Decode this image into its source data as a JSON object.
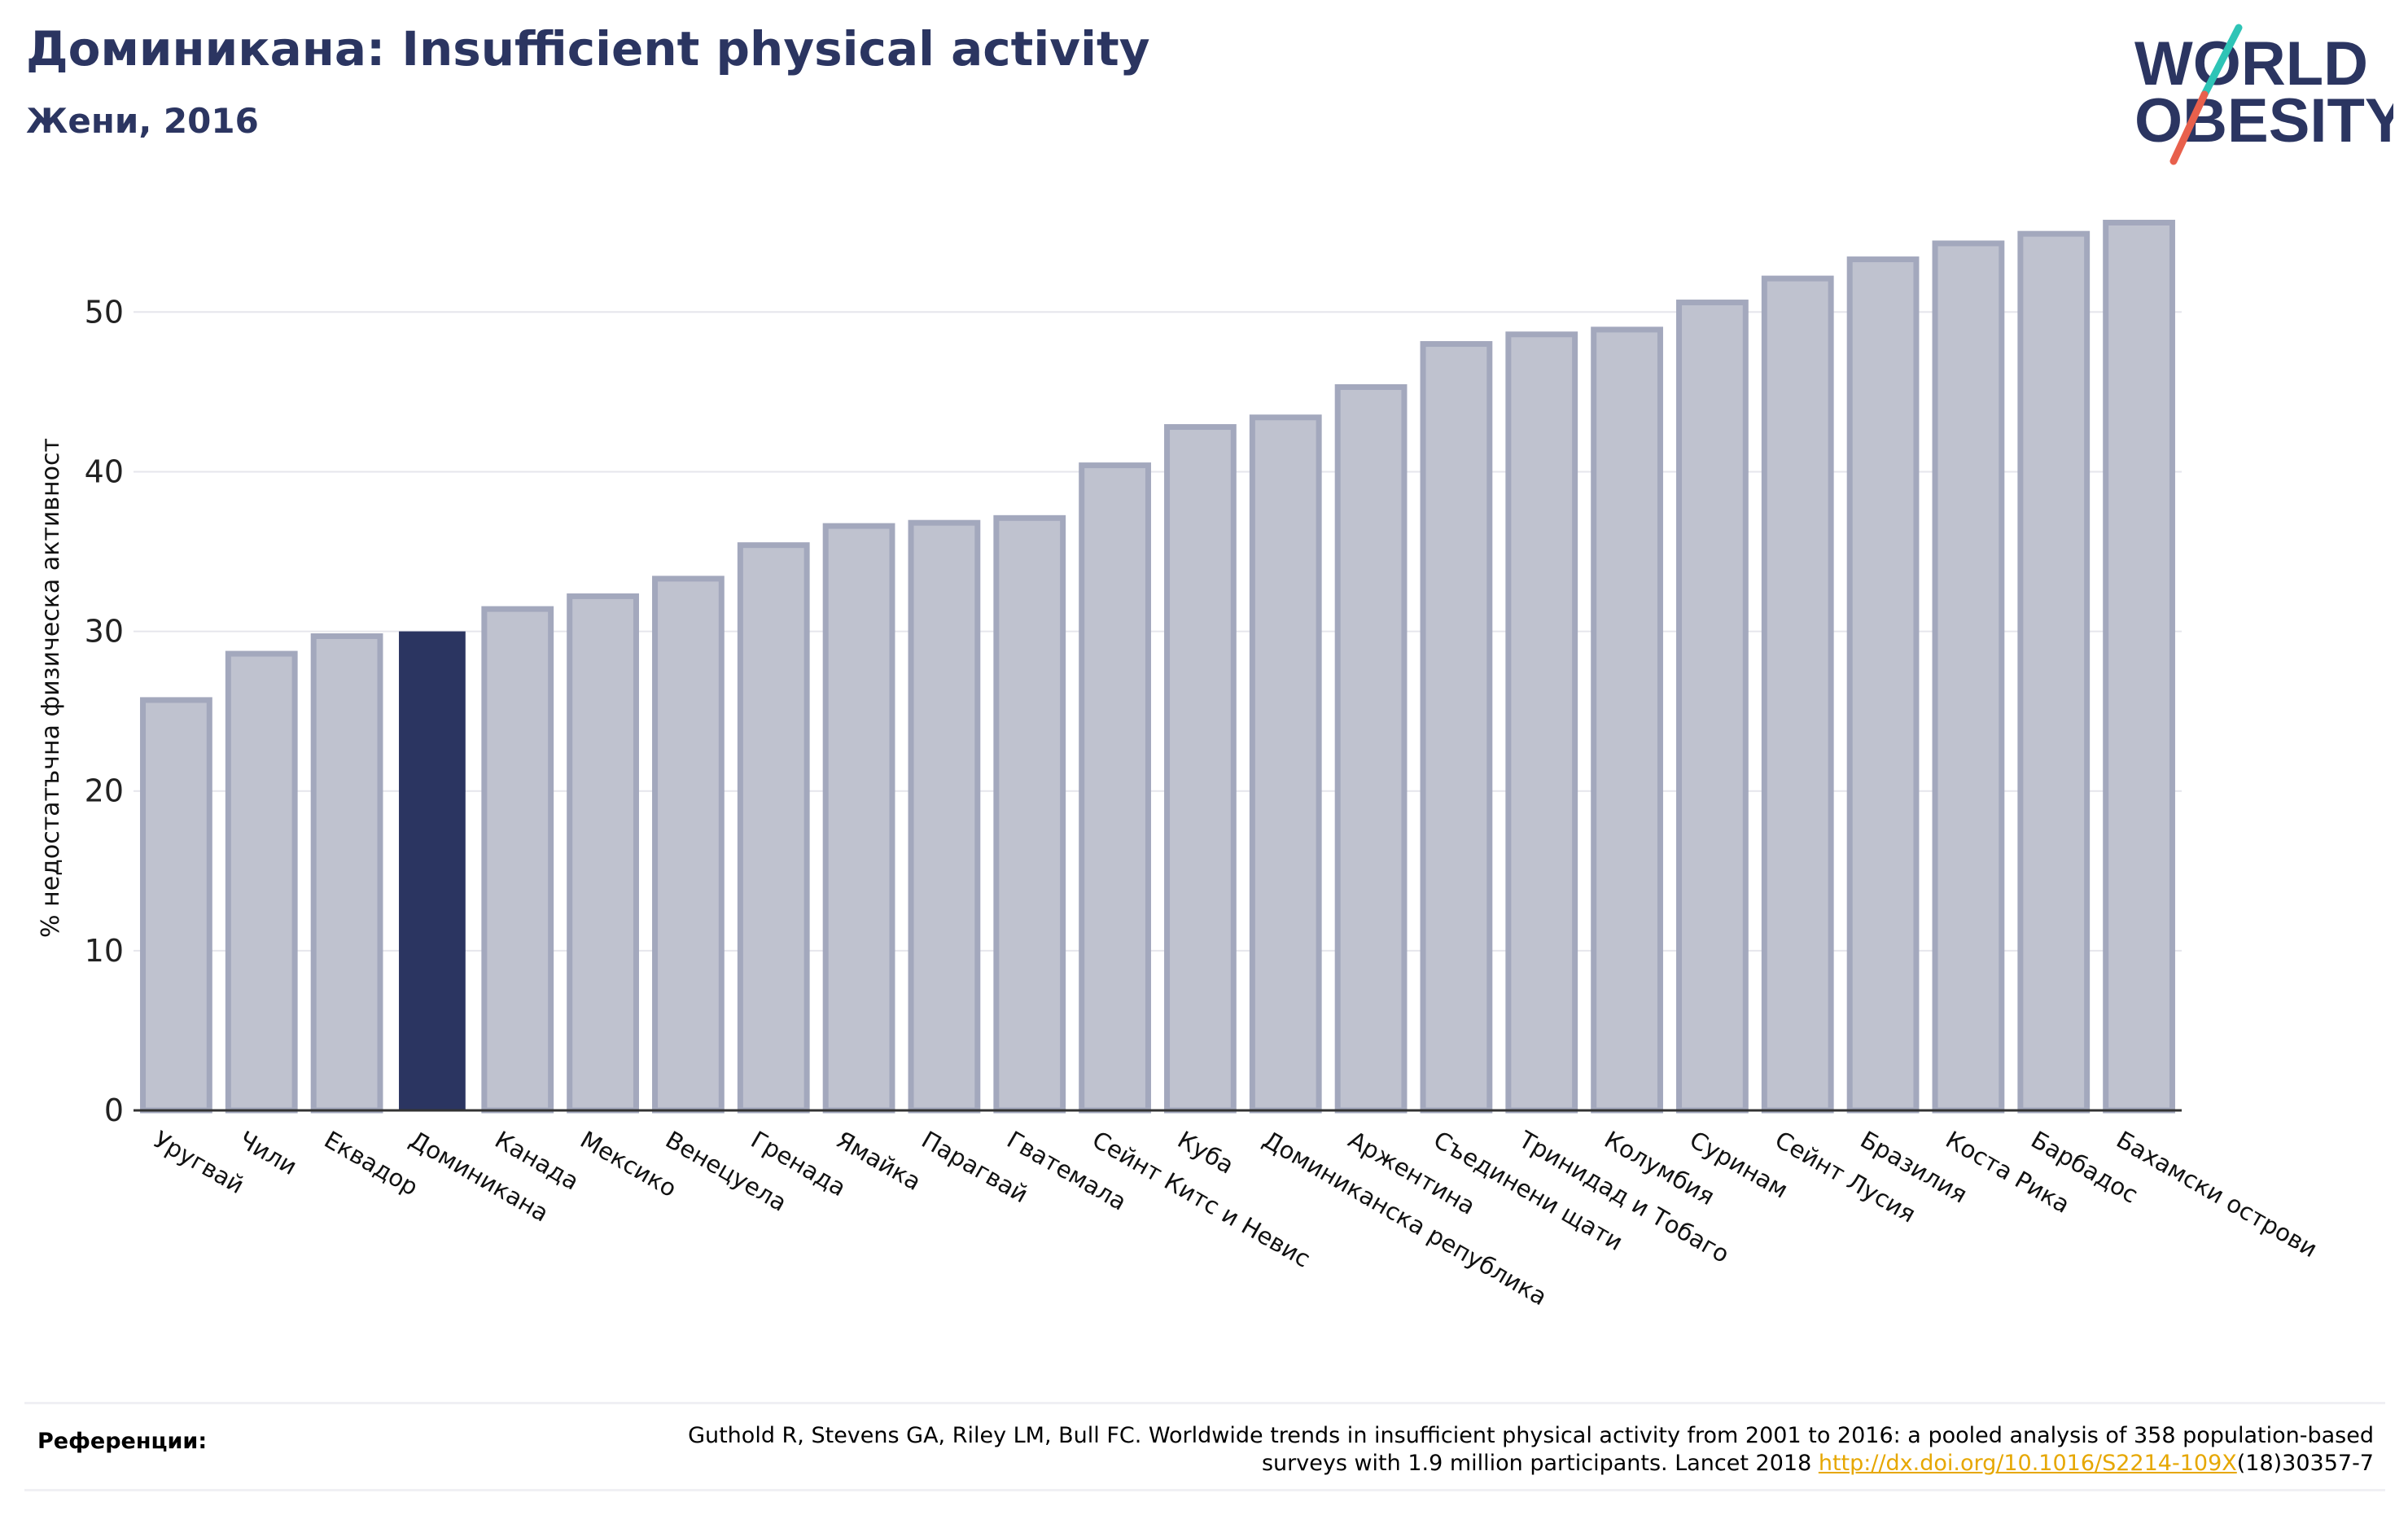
{
  "header": {
    "title": "Доминикана: Insufficient physical activity",
    "subtitle": "Жени, 2016"
  },
  "logo": {
    "line1": "WORLD",
    "line2": "OBESITY",
    "brand_color": "#2b3561",
    "slash_colors": [
      "#2ec4b6",
      "#e8604c"
    ]
  },
  "chart_data": {
    "type": "bar",
    "title": "",
    "xlabel": "",
    "ylabel": "% недостатъчна физическа активност",
    "ylim": [
      0,
      57
    ],
    "yticks": [
      0,
      10,
      20,
      30,
      40,
      50
    ],
    "grid": true,
    "highlight_category": "Доминикана",
    "colors": {
      "bar": "#bfc2cf",
      "bar_edge": "#a3a8bd",
      "highlight": "#2b3561",
      "axis": "#333333",
      "grid": "#e6e6ec"
    },
    "categories": [
      "Уругвай",
      "Чили",
      "Еквадор",
      "Доминикана",
      "Канада",
      "Мексико",
      "Венецуела",
      "Гренада",
      "Ямайка",
      "Парагвай",
      "Гватемала",
      "Сейнт Китс и Невис",
      "Куба",
      "Доминиканска република",
      "Аржентина",
      "Съединени щати",
      "Тринидад и Тобаго",
      "Колумбия",
      "Суринам",
      "Сейнт Лусия",
      "Бразилия",
      "Коста Рика",
      "Барбадос",
      "Бахамски острови"
    ],
    "values": [
      25.7,
      28.6,
      29.7,
      30.0,
      31.4,
      32.2,
      33.3,
      35.4,
      36.6,
      36.8,
      37.1,
      40.4,
      42.8,
      43.4,
      45.3,
      48.0,
      48.6,
      48.9,
      50.6,
      52.1,
      53.3,
      54.3,
      54.9,
      55.6
    ]
  },
  "references": {
    "label": "Референции:",
    "text_before_link": "Guthold R, Stevens GA, Riley LM, Bull FC. Worldwide trends in insufficient physical activity from 2001 to 2016: a pooled analysis of 358 population-based surveys with 1.9 million participants. Lancet 2018 ",
    "link_text": "http://dx.doi.org/10.1016/S2214-109X",
    "text_after_link": "(18)30357-7"
  }
}
